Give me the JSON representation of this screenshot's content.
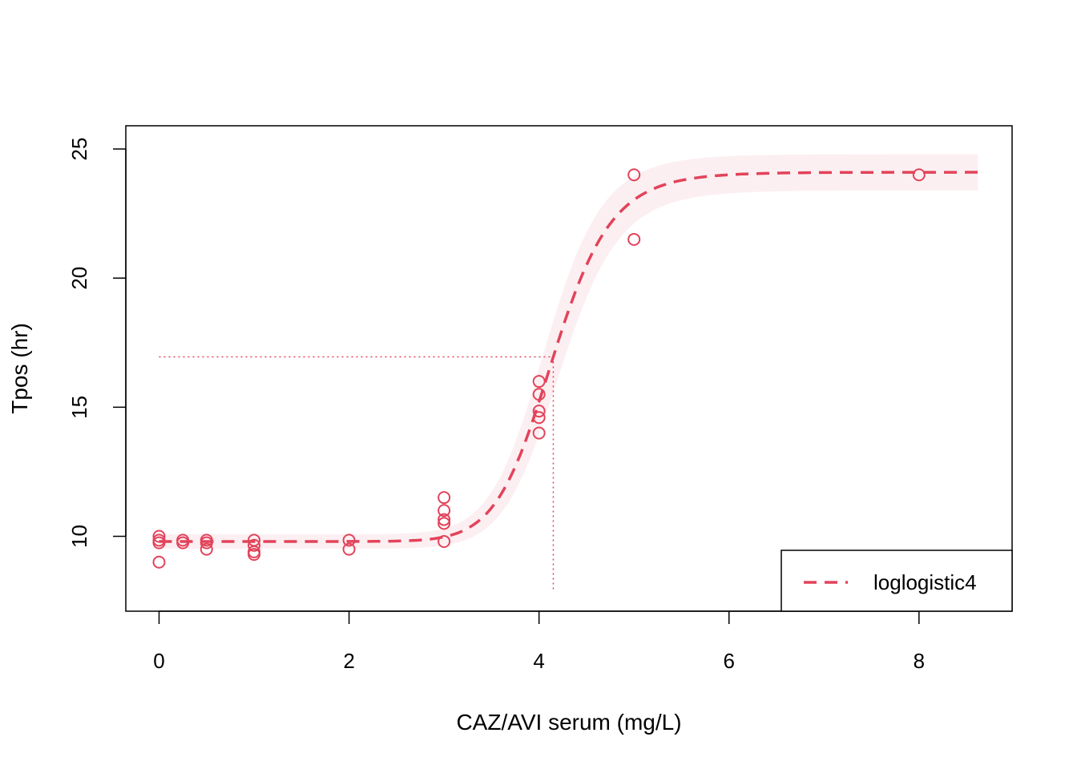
{
  "chart_data": {
    "type": "scatter",
    "title": "",
    "xlabel": "CAZ/AVI serum (mg/L)",
    "ylabel": "Tpos (hr)",
    "xlim": [
      -0.35,
      8.98
    ],
    "ylim": [
      7.1,
      25.9
    ],
    "xticks": [
      0,
      2,
      4,
      6,
      8
    ],
    "xtick_labels": [
      "0",
      "2",
      "4",
      "6",
      "8"
    ],
    "yticks": [
      10,
      15,
      20,
      25
    ],
    "ytick_labels": [
      "10",
      "15",
      "20",
      "25"
    ],
    "grid": false,
    "legend": {
      "position": "bottom-right",
      "entries": [
        {
          "label": "loglogistic4",
          "style": "dashed"
        }
      ]
    },
    "colors": {
      "series": "#E2435A",
      "band": "#FCEFF2"
    },
    "points": [
      {
        "x": 0,
        "y": 10.0
      },
      {
        "x": 0,
        "y": 9.85
      },
      {
        "x": 0,
        "y": 9.75
      },
      {
        "x": 0,
        "y": 9.0
      },
      {
        "x": 0.25,
        "y": 9.85
      },
      {
        "x": 0.25,
        "y": 9.75
      },
      {
        "x": 0.5,
        "y": 9.85
      },
      {
        "x": 0.5,
        "y": 9.75
      },
      {
        "x": 0.5,
        "y": 9.5
      },
      {
        "x": 1,
        "y": 9.85
      },
      {
        "x": 1,
        "y": 9.65
      },
      {
        "x": 1,
        "y": 9.4
      },
      {
        "x": 1,
        "y": 9.3
      },
      {
        "x": 2,
        "y": 9.85
      },
      {
        "x": 2,
        "y": 9.5
      },
      {
        "x": 3,
        "y": 11.5
      },
      {
        "x": 3,
        "y": 11.0
      },
      {
        "x": 3,
        "y": 10.65
      },
      {
        "x": 3,
        "y": 10.5
      },
      {
        "x": 3,
        "y": 9.8
      },
      {
        "x": 4,
        "y": 16.0
      },
      {
        "x": 4,
        "y": 15.5
      },
      {
        "x": 4,
        "y": 14.85
      },
      {
        "x": 4,
        "y": 14.6
      },
      {
        "x": 4,
        "y": 14.0
      },
      {
        "x": 5,
        "y": 24.0
      },
      {
        "x": 5,
        "y": 21.5
      },
      {
        "x": 8,
        "y": 24.0
      }
    ],
    "fit": {
      "model": "loglogistic4",
      "lower": 9.8,
      "upper": 24.1,
      "ec50": 4.15,
      "slope": 13.5,
      "x_range": [
        0,
        8.62
      ],
      "ci_halfwidth_low": 0.28,
      "ci_halfwidth_high": 0.7,
      "ci_halfwidth_mid": 0.9
    },
    "reference_lines": {
      "x": 4.15,
      "y": 16.95
    }
  }
}
